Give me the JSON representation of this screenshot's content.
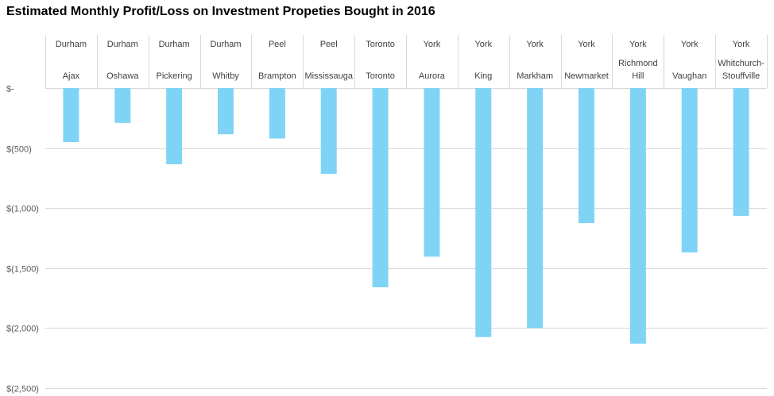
{
  "chart_data": {
    "type": "bar",
    "title": "Estimated Monthly Profit/Loss on Investment Propeties Bought in 2016",
    "xlabel": "",
    "ylabel": "",
    "ylim": [
      -2500,
      0
    ],
    "yticks": [
      0,
      -500,
      -1000,
      -1500,
      -2000,
      -2500
    ],
    "ytick_labels": [
      "$-",
      "$(500)",
      "$(1,000)",
      "$(1,500)",
      "$(2,000)",
      "$(2,500)"
    ],
    "grid": true,
    "bar_color": "#7FD4F6",
    "grid_color": "#D9D9D9",
    "categories": [
      {
        "region": "Durham",
        "city": [
          "Ajax"
        ],
        "value": -450
      },
      {
        "region": "Durham",
        "city": [
          "Oshawa"
        ],
        "value": -290
      },
      {
        "region": "Durham",
        "city": [
          "Pickering"
        ],
        "value": -635
      },
      {
        "region": "Durham",
        "city": [
          "Whitby"
        ],
        "value": -385
      },
      {
        "region": "Peel",
        "city": [
          "Brampton"
        ],
        "value": -420
      },
      {
        "region": "Peel",
        "city": [
          "Mississauga"
        ],
        "value": -715
      },
      {
        "region": "Toronto",
        "city": [
          "Toronto"
        ],
        "value": -1660
      },
      {
        "region": "York",
        "city": [
          "Aurora"
        ],
        "value": -1405
      },
      {
        "region": "York",
        "city": [
          "King"
        ],
        "value": -2075
      },
      {
        "region": "York",
        "city": [
          "Markham"
        ],
        "value": -2000
      },
      {
        "region": "York",
        "city": [
          "Newmarket"
        ],
        "value": -1125
      },
      {
        "region": "York",
        "city": [
          "Richmond",
          "Hill"
        ],
        "value": -2130
      },
      {
        "region": "York",
        "city": [
          "Vaughan"
        ],
        "value": -1370
      },
      {
        "region": "York",
        "city": [
          "Whitchurch-",
          "Stouffville"
        ],
        "value": -1065
      }
    ]
  }
}
